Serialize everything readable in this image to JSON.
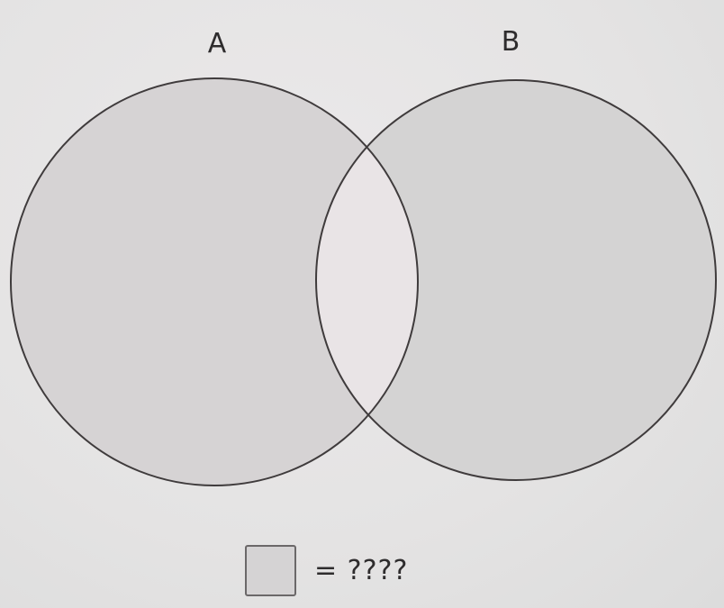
{
  "diagram": {
    "set_a": {
      "label": "A"
    },
    "set_b": {
      "label": "B"
    }
  },
  "legend": {
    "text": "= ????"
  },
  "colors": {
    "background": "#e7e6e6",
    "shaded_region": "#d5d3d4",
    "intersection": "#e9e4e6",
    "outline": "#3f3b3c"
  }
}
